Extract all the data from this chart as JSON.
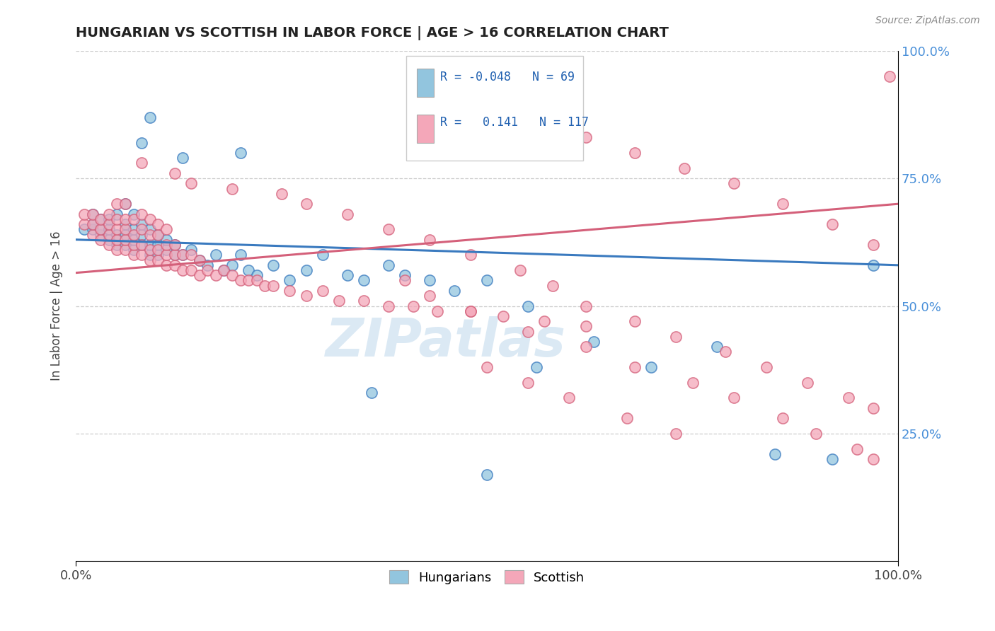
{
  "title": "HUNGARIAN VS SCOTTISH IN LABOR FORCE | AGE > 16 CORRELATION CHART",
  "source_text": "Source: ZipAtlas.com",
  "ylabel": "In Labor Force | Age > 16",
  "watermark": "ZIPatlas",
  "legend": {
    "hungarian_label": "Hungarians",
    "scottish_label": "Scottish",
    "hungarian_R": -0.048,
    "hungarian_N": 69,
    "scottish_R": 0.141,
    "scottish_N": 117
  },
  "hungarian_color": "#92c5de",
  "scottish_color": "#f4a7b9",
  "hungarian_line_color": "#3a7abf",
  "scottish_line_color": "#d4607a",
  "background_color": "#ffffff",
  "grid_color": "#c8c8c8",
  "xlim": [
    0.0,
    1.0
  ],
  "ylim": [
    0.0,
    1.0
  ],
  "right_yticks": [
    0.25,
    0.5,
    0.75,
    1.0
  ],
  "right_yticklabels": [
    "25.0%",
    "50.0%",
    "75.0%",
    "100.0%"
  ],
  "xticks": [
    0.0,
    1.0
  ],
  "xticklabels": [
    "0.0%",
    "100.0%"
  ],
  "title_color": "#222222",
  "axis_label_color": "#444444",
  "right_tick_color": "#4a90d9",
  "hungarian_x": [
    0.01,
    0.02,
    0.02,
    0.02,
    0.03,
    0.03,
    0.03,
    0.04,
    0.04,
    0.04,
    0.05,
    0.05,
    0.05,
    0.06,
    0.06,
    0.06,
    0.06,
    0.07,
    0.07,
    0.07,
    0.07,
    0.08,
    0.08,
    0.08,
    0.09,
    0.09,
    0.09,
    0.1,
    0.1,
    0.1,
    0.11,
    0.11,
    0.12,
    0.12,
    0.13,
    0.14,
    0.15,
    0.16,
    0.17,
    0.18,
    0.19,
    0.2,
    0.21,
    0.22,
    0.24,
    0.26,
    0.28,
    0.3,
    0.33,
    0.35,
    0.38,
    0.4,
    0.43,
    0.46,
    0.5,
    0.55,
    0.2,
    0.13,
    0.08,
    0.09,
    0.36,
    0.56,
    0.63,
    0.7,
    0.78,
    0.85,
    0.92,
    0.97,
    0.5
  ],
  "hungarian_y": [
    0.65,
    0.65,
    0.66,
    0.68,
    0.64,
    0.65,
    0.67,
    0.63,
    0.65,
    0.67,
    0.62,
    0.64,
    0.68,
    0.62,
    0.64,
    0.66,
    0.7,
    0.61,
    0.63,
    0.65,
    0.68,
    0.62,
    0.64,
    0.66,
    0.6,
    0.62,
    0.65,
    0.6,
    0.62,
    0.64,
    0.61,
    0.63,
    0.6,
    0.62,
    0.6,
    0.61,
    0.59,
    0.58,
    0.6,
    0.57,
    0.58,
    0.6,
    0.57,
    0.56,
    0.58,
    0.55,
    0.57,
    0.6,
    0.56,
    0.55,
    0.58,
    0.56,
    0.55,
    0.53,
    0.55,
    0.5,
    0.8,
    0.79,
    0.82,
    0.87,
    0.33,
    0.38,
    0.43,
    0.38,
    0.42,
    0.21,
    0.2,
    0.58,
    0.17
  ],
  "scottish_x": [
    0.01,
    0.01,
    0.02,
    0.02,
    0.02,
    0.03,
    0.03,
    0.03,
    0.04,
    0.04,
    0.04,
    0.04,
    0.05,
    0.05,
    0.05,
    0.05,
    0.05,
    0.06,
    0.06,
    0.06,
    0.06,
    0.06,
    0.07,
    0.07,
    0.07,
    0.07,
    0.08,
    0.08,
    0.08,
    0.08,
    0.09,
    0.09,
    0.09,
    0.09,
    0.1,
    0.1,
    0.1,
    0.1,
    0.11,
    0.11,
    0.11,
    0.11,
    0.12,
    0.12,
    0.12,
    0.13,
    0.13,
    0.14,
    0.14,
    0.15,
    0.15,
    0.16,
    0.17,
    0.18,
    0.19,
    0.2,
    0.21,
    0.22,
    0.23,
    0.24,
    0.26,
    0.28,
    0.3,
    0.32,
    0.35,
    0.38,
    0.41,
    0.44,
    0.48,
    0.52,
    0.57,
    0.62,
    0.08,
    0.12,
    0.14,
    0.19,
    0.25,
    0.28,
    0.33,
    0.38,
    0.43,
    0.48,
    0.54,
    0.58,
    0.62,
    0.68,
    0.73,
    0.79,
    0.84,
    0.89,
    0.94,
    0.97,
    0.62,
    0.68,
    0.74,
    0.8,
    0.86,
    0.92,
    0.97,
    0.4,
    0.43,
    0.48,
    0.55,
    0.62,
    0.68,
    0.75,
    0.8,
    0.86,
    0.9,
    0.95,
    0.97,
    0.99,
    0.5,
    0.55,
    0.6,
    0.67,
    0.73
  ],
  "scottish_y": [
    0.66,
    0.68,
    0.64,
    0.66,
    0.68,
    0.63,
    0.65,
    0.67,
    0.62,
    0.64,
    0.66,
    0.68,
    0.61,
    0.63,
    0.65,
    0.67,
    0.7,
    0.61,
    0.63,
    0.65,
    0.67,
    0.7,
    0.6,
    0.62,
    0.64,
    0.67,
    0.6,
    0.62,
    0.65,
    0.68,
    0.59,
    0.61,
    0.64,
    0.67,
    0.59,
    0.61,
    0.64,
    0.66,
    0.58,
    0.6,
    0.62,
    0.65,
    0.58,
    0.6,
    0.62,
    0.57,
    0.6,
    0.57,
    0.6,
    0.56,
    0.59,
    0.57,
    0.56,
    0.57,
    0.56,
    0.55,
    0.55,
    0.55,
    0.54,
    0.54,
    0.53,
    0.52,
    0.53,
    0.51,
    0.51,
    0.5,
    0.5,
    0.49,
    0.49,
    0.48,
    0.47,
    0.46,
    0.78,
    0.76,
    0.74,
    0.73,
    0.72,
    0.7,
    0.68,
    0.65,
    0.63,
    0.6,
    0.57,
    0.54,
    0.5,
    0.47,
    0.44,
    0.41,
    0.38,
    0.35,
    0.32,
    0.3,
    0.83,
    0.8,
    0.77,
    0.74,
    0.7,
    0.66,
    0.62,
    0.55,
    0.52,
    0.49,
    0.45,
    0.42,
    0.38,
    0.35,
    0.32,
    0.28,
    0.25,
    0.22,
    0.2,
    0.95,
    0.38,
    0.35,
    0.32,
    0.28,
    0.25
  ]
}
